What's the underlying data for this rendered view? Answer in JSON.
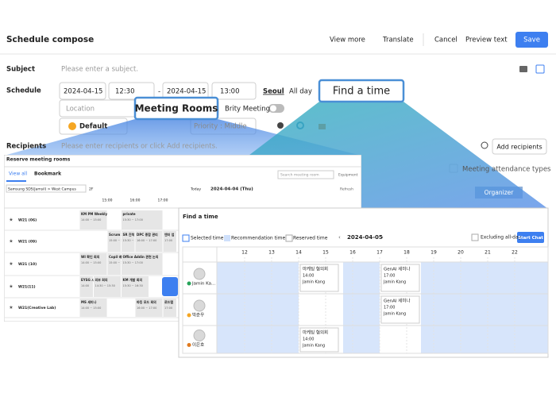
{
  "header": {
    "title": "Schedule compose",
    "actions": [
      "View more",
      "Translate",
      "Cancel",
      "Preview text"
    ],
    "save": "Save"
  },
  "form": {
    "subject_label": "Subject",
    "subject_placeholder": "Please enter a subject.",
    "schedule_label": "Schedule",
    "start_date": "2024-04-15",
    "start_time": "12:30",
    "separator": "-",
    "end_date": "2024-04-15",
    "end_time": "13:00",
    "timezone": "Seoul",
    "all_day": "All day",
    "location_placeholder": "Location",
    "brity_meeting": "Brity Meeting",
    "category": "Default",
    "priority": "Priority : Middle",
    "recipients_label": "Recipients",
    "recipients_placeholder": "Please enter recipients or click Add recipients.",
    "add_recipients": "Add recipients",
    "attendance_types": "Meeting attendance types",
    "organizer": "Organizer"
  },
  "callouts": {
    "find_a_time": "Find a time",
    "meeting_rooms": "Meeting Rooms"
  },
  "rooms_panel": {
    "title": "Reserve meeting rooms",
    "tabs": [
      "View all",
      "Bookmark"
    ],
    "location": "Samsung SDS(Jamsil) > West Campus",
    "floor": "2F",
    "search_placeholder": "Search meeting room",
    "equipment": "Equipment",
    "today": "Today",
    "date": "2024-04-04 (Thu)",
    "refresh": "Refresh",
    "hours": [
      "15:00",
      "16:00",
      "17:00"
    ],
    "rooms": [
      {
        "name": "W21 (06)",
        "bookings": [
          {
            "title": "KM PM Weekly",
            "time": "14:00 ~ 15:00"
          },
          {
            "title": "private",
            "time": "15:30 ~ 17:00"
          }
        ]
      },
      {
        "name": "W21 (09)",
        "bookings": [
          {
            "title": "Scrum 회의",
            "time": "15:00 ~ 15:30"
          },
          {
            "title": "SR 진척 보고",
            "time": "15:30 ~ 16:00"
          },
          {
            "title": "DPC 종합 관리",
            "time": "16:00 ~ 17:00"
          },
          {
            "title": "엔터 업",
            "time": "17:00"
          }
        ]
      },
      {
        "name": "W21 (10)",
        "bookings": [
          {
            "title": "WI 확인 회의",
            "time": "14:00 ~ 15:00"
          },
          {
            "title": "Copil 배입 작업",
            "time": "15:00 ~ 15:30"
          },
          {
            "title": "Office Addin 관련 논의",
            "time": "15:30 ~ 17:00"
          }
        ]
      },
      {
        "name": "W21(11)",
        "bookings": [
          {
            "title": "EYSG 시내 기획",
            "time": "14:00"
          },
          {
            "title": "외부 회의",
            "time": "14:30 ~ 15:30"
          },
          {
            "title": "KM 개발 회의",
            "time": "15:30 ~ 16:30"
          }
        ]
      },
      {
        "name": "W21(Creative Lab)",
        "bookings": [
          {
            "title": "MS 세미나",
            "time": "14:00 ~ 15:00"
          },
          {
            "title": "파킹 모드 회의",
            "time": "16:00 ~ 17:00"
          },
          {
            "title": "로드맵",
            "time": "17:00"
          }
        ]
      }
    ]
  },
  "find_panel": {
    "title": "Find a time",
    "legend": [
      "Selected time",
      "Recommendation time",
      "Reserved time"
    ],
    "date": "2024-04-05",
    "excluding_all_day": "Excluding all-day",
    "start_chat": "Start Chat",
    "hours": [
      12,
      13,
      14,
      15,
      16,
      17,
      18,
      19,
      20,
      21,
      22
    ],
    "people": [
      {
        "name": "Jamin Ka...",
        "events": [
          {
            "title": "마케팅 협의회",
            "time": "14:00",
            "owner": "Jamin Kang"
          },
          {
            "title": "GenAI 세미나",
            "time": "17:00",
            "owner": "Jamin Kang"
          }
        ]
      },
      {
        "name": "박준우",
        "events": [
          {
            "title": "GenAI 세미나",
            "time": "17:00",
            "owner": "Jamin Kang"
          }
        ]
      },
      {
        "name": "이은호",
        "events": [
          {
            "title": "마케팅 협의회",
            "time": "14:00",
            "owner": "Jamin Kang"
          }
        ]
      }
    ]
  }
}
